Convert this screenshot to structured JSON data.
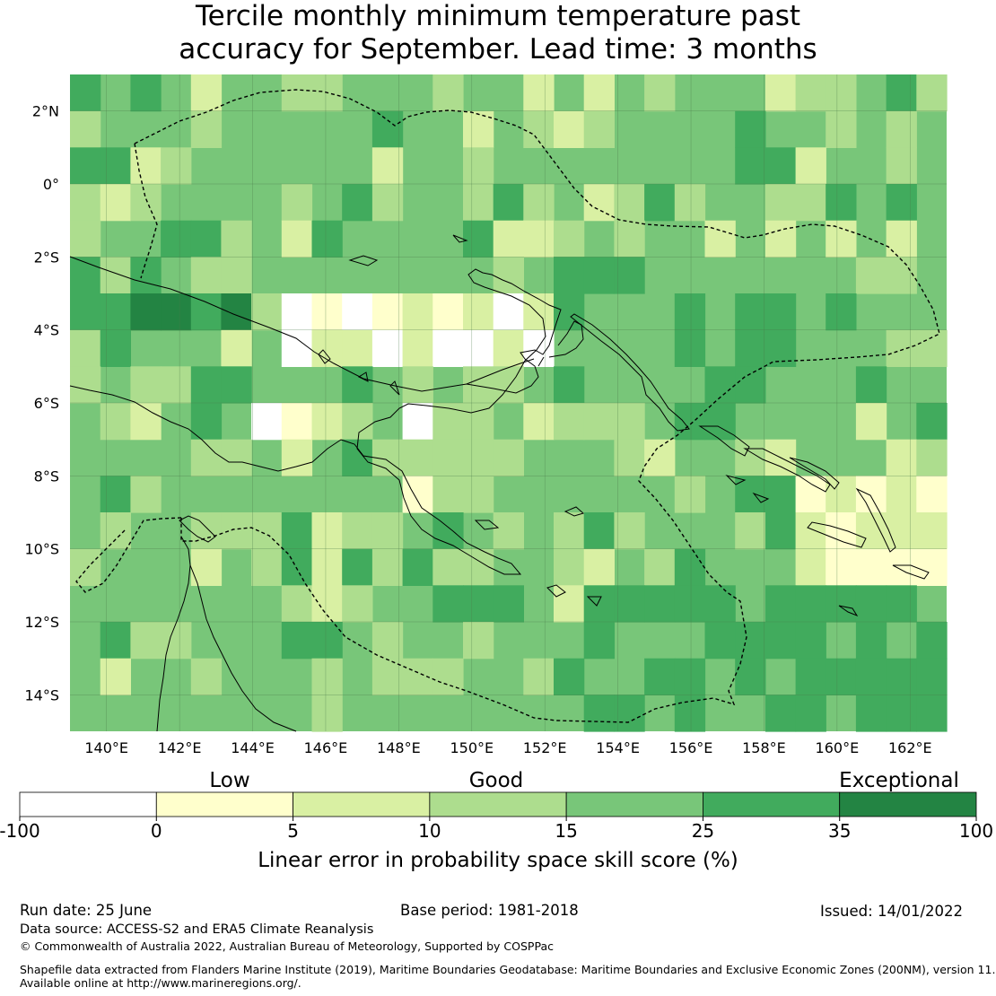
{
  "title": {
    "line1": "Tercile monthly minimum temperature past",
    "line2": "accuracy for September. Lead time: 3 months"
  },
  "map": {
    "lon_range": [
      139,
      163
    ],
    "lat_range": [
      -15,
      3
    ],
    "lon_labels": [
      "140°E",
      "142°E",
      "144°E",
      "146°E",
      "148°E",
      "150°E",
      "152°E",
      "154°E",
      "156°E",
      "158°E",
      "160°E",
      "162°E"
    ],
    "lat_labels": [
      "2°N",
      "0°",
      "2°S",
      "4°S",
      "6°S",
      "8°S",
      "10°S",
      "12°S",
      "14°S"
    ],
    "grid": true,
    "layers": [
      "skill-score-grid",
      "coastlines",
      "maritime-boundaries-dashed"
    ]
  },
  "colorbar": {
    "categories": [
      "Low",
      "Good",
      "Exceptional"
    ],
    "ticks": [
      "-100",
      "0",
      "5",
      "10",
      "15",
      "25",
      "35",
      "100"
    ],
    "colors": [
      "#ffffff",
      "#ffffcc",
      "#d9f0a3",
      "#addd8e",
      "#78c679",
      "#41ab5d",
      "#238443"
    ],
    "label": "Linear error in probability space skill score (%)"
  },
  "footer": {
    "run_date": "Run date: 25 June",
    "base_period": "Base period: 1981-2018",
    "issued": "Issued: 14/01/2022",
    "data_source": "Data source: ACCESS-S2 and ERA5 Climate Reanalysis",
    "copyright": "© Commonwealth of Australia 2022, Australian Bureau of Meteorology, Supported by COSPPac",
    "shapefile_line1": "Shapefile data extracted from Flanders Marine Institute (2019), Maritime Boundaries Geodatabase: Maritime Boundaries and Exclusive Economic Zones (200NM), version 11.",
    "shapefile_line2": "Available online at http://www.marineregions.org/."
  }
}
